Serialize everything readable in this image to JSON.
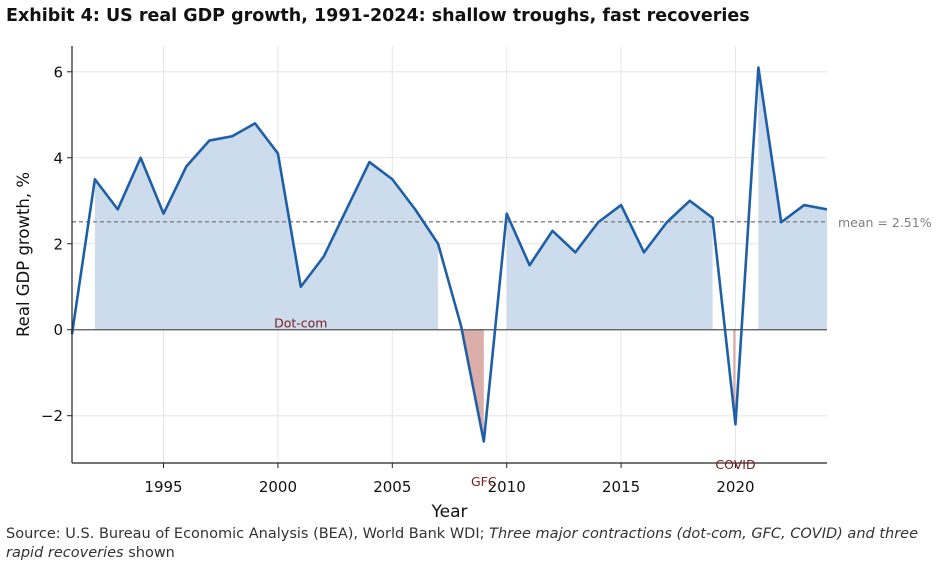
{
  "title": "Exhibit 4: US real GDP growth, 1991-2024: shallow troughs, fast recoveries",
  "source": {
    "prefix": "Source: U.S. Bureau of Economic Analysis (BEA), World Bank WDI; ",
    "note": "Three major contractions (dot-com, GFC, COVID) and three rapid recoveries",
    "suffix": " shown"
  },
  "colors": {
    "line": "#1f5fa6",
    "positive_fill": "#ccdcec",
    "negative_fill": "#dcaeaa",
    "mean_line": "#7f7f7f",
    "annotation": "#7a2020",
    "zero_line": "#555555"
  },
  "chart_data": {
    "type": "area",
    "title": "",
    "xlabel": "Year",
    "ylabel": "Real GDP growth, %",
    "xlim": [
      1991,
      2024
    ],
    "ylim": [
      -3.1,
      6.6
    ],
    "xticks": [
      1995,
      2000,
      2005,
      2010,
      2015,
      2020
    ],
    "yticks": [
      -2,
      0,
      2,
      4,
      6
    ],
    "ytick_labels": [
      "−2",
      "0",
      "2",
      "4",
      "6"
    ],
    "grid": true,
    "series": [
      {
        "x": [
          1991,
          1992,
          1993,
          1994,
          1995,
          1996,
          1997,
          1998,
          1999,
          2000,
          2001,
          2002,
          2003,
          2004,
          2005,
          2006,
          2007,
          2008,
          2009,
          2010,
          2011,
          2012,
          2013,
          2014,
          2015,
          2016,
          2017,
          2018,
          2019,
          2020,
          2021,
          2022,
          2023,
          2024
        ],
        "y": [
          -0.1,
          3.5,
          2.8,
          4.0,
          2.7,
          3.8,
          4.4,
          4.5,
          4.8,
          4.1,
          1.0,
          1.7,
          2.8,
          3.9,
          3.5,
          2.8,
          2.0,
          0.1,
          -2.6,
          2.7,
          1.5,
          2.3,
          1.8,
          2.5,
          2.9,
          1.8,
          2.5,
          3.0,
          2.6,
          -2.2,
          6.1,
          2.5,
          2.9,
          2.8
        ]
      }
    ],
    "mean": 2.51,
    "mean_label": "mean = 2.51%",
    "shaded_above_zero": [
      [
        1992,
        2007
      ],
      [
        2010,
        2019
      ],
      [
        2021,
        2024
      ]
    ],
    "shaded_below_zero": [
      [
        2008,
        2009
      ],
      [
        2019.9,
        2020
      ]
    ],
    "annotations": [
      {
        "text": "Dot-com",
        "x": 2001,
        "y": 0
      },
      {
        "text": "GFC",
        "x": 2009,
        "y": -3.1
      },
      {
        "text": "COVID",
        "x": 2020,
        "y": -3.1
      }
    ]
  }
}
